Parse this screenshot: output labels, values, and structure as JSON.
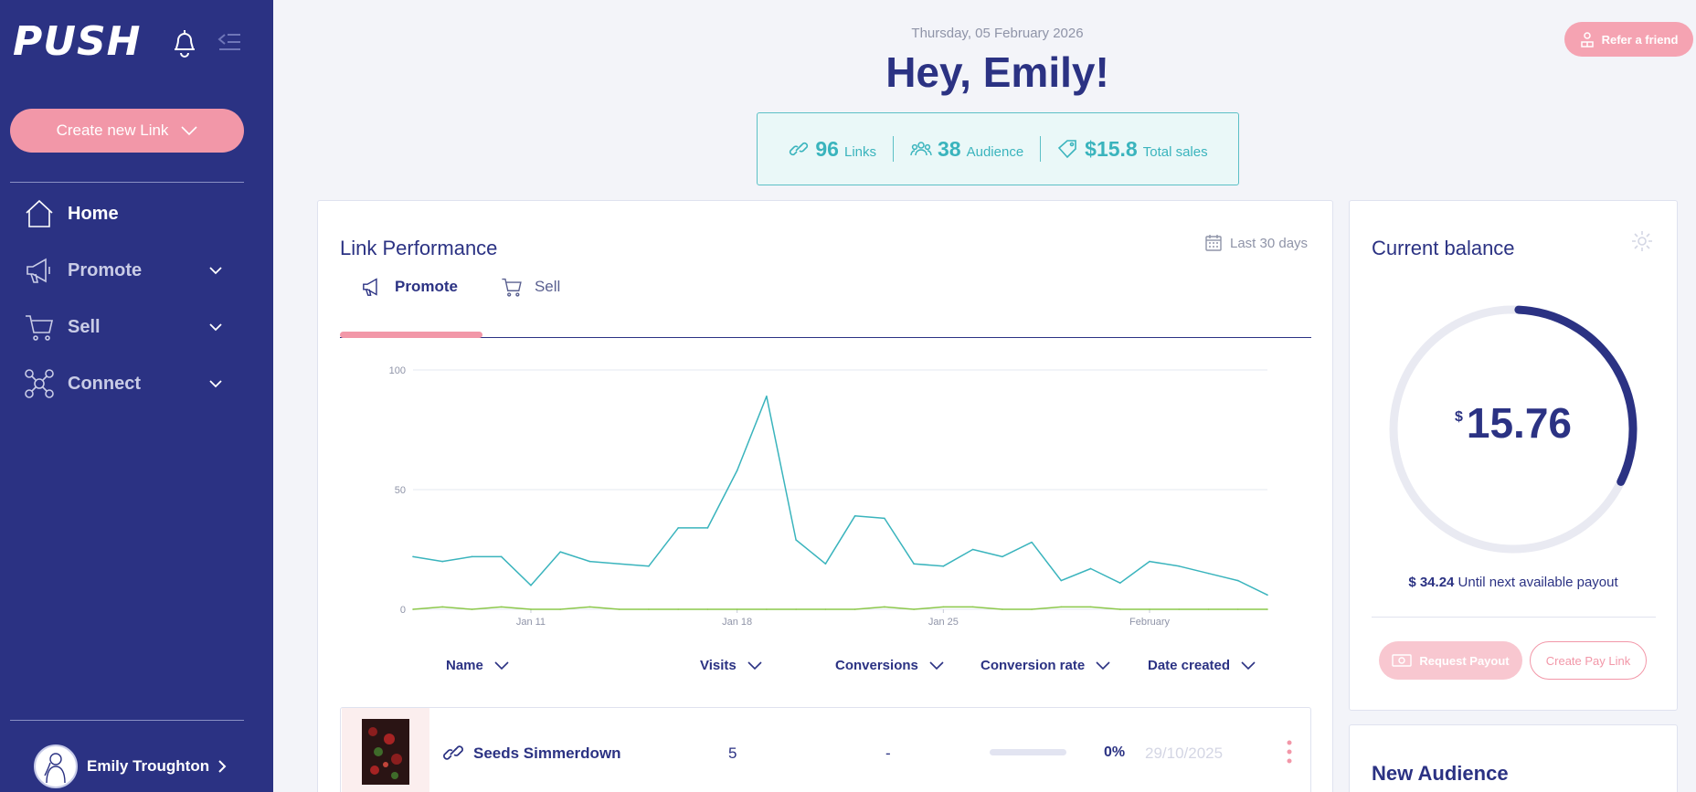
{
  "sidebar": {
    "logo": "PUSH",
    "create_button": "Create new Link",
    "nav": [
      {
        "label": "Home",
        "icon": "home-icon"
      },
      {
        "label": "Promote",
        "icon": "megaphone-icon"
      },
      {
        "label": "Sell",
        "icon": "cart-icon"
      },
      {
        "label": "Connect",
        "icon": "network-icon"
      }
    ],
    "user_name": "Emily Troughton"
  },
  "header": {
    "date": "Thursday, 05 February 2026",
    "greeting": "Hey, Emily!",
    "refer_button": "Refer a friend"
  },
  "stats": {
    "links_value": "96",
    "links_label": "Links",
    "audience_value": "38",
    "audience_label": "Audience",
    "sales_value": "$15.8",
    "sales_label": "Total sales"
  },
  "link_performance": {
    "title": "Link Performance",
    "range": "Last 30 days",
    "tabs": [
      "Promote",
      "Sell"
    ],
    "columns": [
      "Name",
      "Visits",
      "Conversions",
      "Conversion rate",
      "Date created"
    ],
    "rows": [
      {
        "name": "Seeds Simmerdown",
        "visits": "5",
        "conversions": "-",
        "rate": "0%",
        "date": "29/10/2025",
        "rate_fraction": 0
      }
    ]
  },
  "chart_data": {
    "type": "line",
    "x_tick_labels": [
      "Jan 11",
      "Jan 18",
      "Jan 25",
      "February"
    ],
    "x_tick_index": [
      4,
      11,
      18,
      25
    ],
    "y_ticks": [
      0,
      50,
      100
    ],
    "ylim": [
      0,
      100
    ],
    "grid": true,
    "series": [
      {
        "color": "#3ab4bd",
        "values": [
          22,
          20,
          22,
          22,
          10,
          24,
          20,
          19,
          18,
          34,
          34,
          58,
          89,
          29,
          19,
          39,
          38,
          19,
          18,
          25,
          22,
          28,
          12,
          17,
          11,
          20,
          18,
          15,
          12,
          6
        ]
      },
      {
        "color": "#8cc84b",
        "values": [
          0,
          1,
          0,
          1,
          0,
          0,
          1,
          0,
          0,
          0,
          0,
          0,
          0,
          0,
          0,
          0,
          1,
          0,
          1,
          1,
          0,
          0,
          1,
          1,
          0,
          0,
          0,
          0,
          0,
          0
        ]
      }
    ]
  },
  "balance": {
    "title": "Current balance",
    "currency": "$",
    "amount": "15.76",
    "progress_fraction": 0.315,
    "payout_amount": "$ 34.24",
    "payout_text": "Until next available payout",
    "request_button": "Request Payout",
    "pay_link_button": "Create Pay Link"
  },
  "new_audience": {
    "title": "New Audience"
  },
  "colors": {
    "navy": "#2b3283",
    "pink": "#f297a8",
    "teal": "#3ab4bd",
    "green": "#8cc84b"
  }
}
